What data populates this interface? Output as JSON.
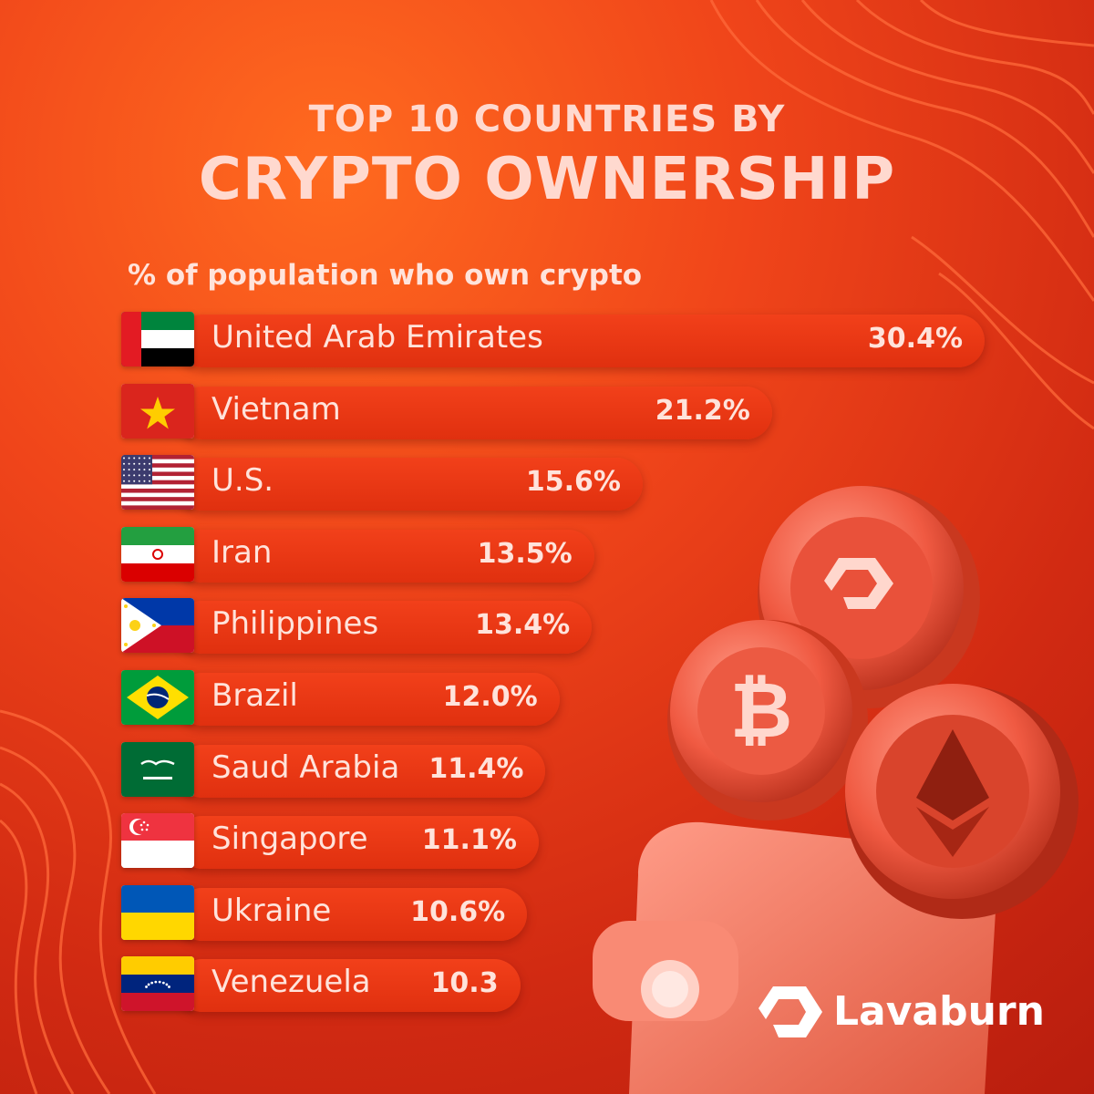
{
  "header": {
    "title_line1": "TOP 10 COUNTRIES BY",
    "title_line2": "CRYPTO OWNERSHIP",
    "subtitle": "% of population who own crypto"
  },
  "chart_data": {
    "type": "bar",
    "orientation": "horizontal",
    "title": "TOP 10 COUNTRIES BY CRYPTO OWNERSHIP",
    "subtitle": "% of population who own crypto",
    "categories": [
      "United Arab Emirates",
      "Vietnam",
      "U.S.",
      "Iran",
      "Philippines",
      "Brazil",
      "Saud Arabia",
      "Singapore",
      "Ukraine",
      "Venezuela"
    ],
    "values": [
      30.4,
      21.2,
      15.6,
      13.5,
      13.4,
      12.0,
      11.4,
      11.1,
      10.6,
      10.3
    ],
    "value_labels": [
      "30.4%",
      "21.2%",
      "15.6%",
      "13.5%",
      "13.4%",
      "12.0%",
      "11.4%",
      "11.1%",
      "10.6%",
      "10.3"
    ],
    "flags": [
      "uae-flag-icon",
      "vietnam-flag-icon",
      "us-flag-icon",
      "iran-flag-icon",
      "philippines-flag-icon",
      "brazil-flag-icon",
      "saudi-arabia-flag-icon",
      "singapore-flag-icon",
      "ukraine-flag-icon",
      "venezuela-flag-icon"
    ],
    "bar_color": "#e8380f",
    "grid": false,
    "legend": "none"
  },
  "icons": [
    "lavaburn-coin-icon",
    "bitcoin-coin-icon",
    "ethereum-coin-icon",
    "wallet-icon"
  ],
  "brand": {
    "name": "Lavaburn",
    "logo_icon": "lavaburn-logo-icon",
    "color": "#ffffff"
  },
  "colors": {
    "background": "#e8401a",
    "text": "#ffe3db",
    "accent": "#f2401a"
  }
}
